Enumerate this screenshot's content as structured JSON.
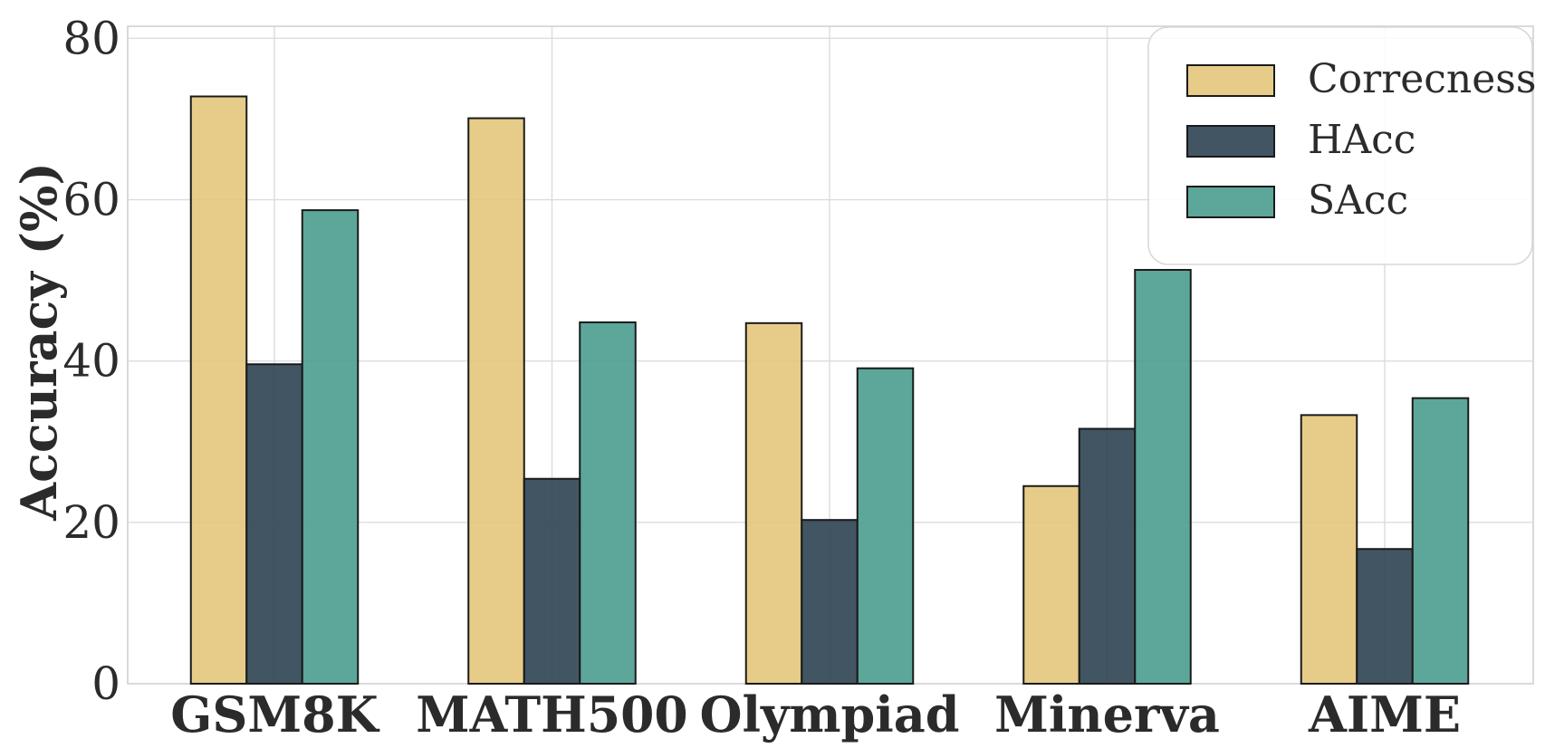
{
  "chart_data": {
    "type": "bar",
    "categories": [
      "GSM8K",
      "MATH500",
      "Olympiad",
      "Minerva",
      "AIME"
    ],
    "series": [
      {
        "name": "Correcness",
        "color": "#E3C67B",
        "values": [
          72.8,
          70.1,
          44.7,
          24.5,
          33.3
        ]
      },
      {
        "name": "HAcc",
        "color": "#2E4352",
        "values": [
          39.6,
          25.4,
          20.3,
          31.6,
          16.7
        ]
      },
      {
        "name": "SAcc",
        "color": "#4A9D8F",
        "values": [
          58.7,
          44.8,
          39.1,
          51.3,
          35.4
        ]
      }
    ],
    "ylabel": "Accuracy (%)",
    "xlabel": "",
    "ylim": [
      0,
      81.5
    ],
    "yticks": [
      0,
      20,
      40,
      60,
      80
    ],
    "grid": true,
    "legend_position": "top-right"
  }
}
